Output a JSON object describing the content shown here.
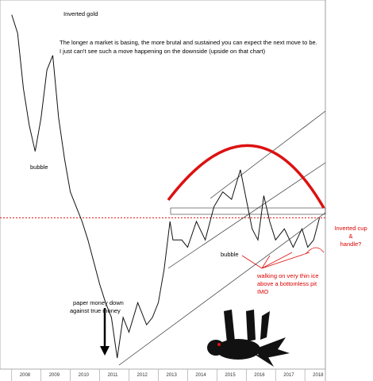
{
  "chart_data": {
    "type": "line",
    "title": "Inverted gold",
    "x": [
      2008.0,
      2008.2,
      2008.4,
      2008.6,
      2008.8,
      2009.0,
      2009.2,
      2009.4,
      2009.6,
      2009.8,
      2010.0,
      2010.2,
      2010.4,
      2010.6,
      2010.8,
      2011.0,
      2011.2,
      2011.4,
      2011.6,
      2011.8,
      2012.0,
      2012.3,
      2012.6,
      2012.8,
      2013.0,
      2013.2,
      2013.4,
      2013.5,
      2013.8,
      2014.0,
      2014.3,
      2014.6,
      2014.9,
      2015.2,
      2015.5,
      2015.8,
      2016.0,
      2016.2,
      2016.4,
      2016.6,
      2016.8,
      2017.0,
      2017.3,
      2017.6,
      2017.9,
      2018.1,
      2018.3,
      2018.5
    ],
    "series": [
      {
        "color": "#111111",
        "values": [
          96,
          91,
          76,
          66,
          59,
          68,
          81,
          85,
          68,
          57,
          48,
          44,
          40,
          35,
          29,
          23,
          18,
          14,
          3,
          14,
          10,
          18,
          12,
          14,
          18,
          27,
          40,
          35,
          35,
          33,
          40,
          35,
          44,
          48,
          46,
          54,
          46,
          38,
          35,
          47,
          40,
          35,
          38,
          33,
          38,
          33,
          35,
          41
        ]
      }
    ],
    "xlim": [
      2007.6,
      2018.7
    ],
    "xticks": [
      2008,
      2009,
      2010,
      2011,
      2012,
      2013,
      2014,
      2015,
      2016,
      2017,
      2018
    ],
    "ylim": [
      0,
      100
    ],
    "reference_line": 41,
    "annotations": [
      "The longer a market is basing, the more brutal and sustained you can expect the next move to be.",
      "I just can't see such a move happening on the downside (upside on that chart)",
      "bubble",
      "bubble",
      "paper money down",
      "against true money",
      "walking on very thin ice",
      "above a bottomless pit",
      "IMO",
      "Inverted cup",
      "&",
      "handle?"
    ]
  }
}
